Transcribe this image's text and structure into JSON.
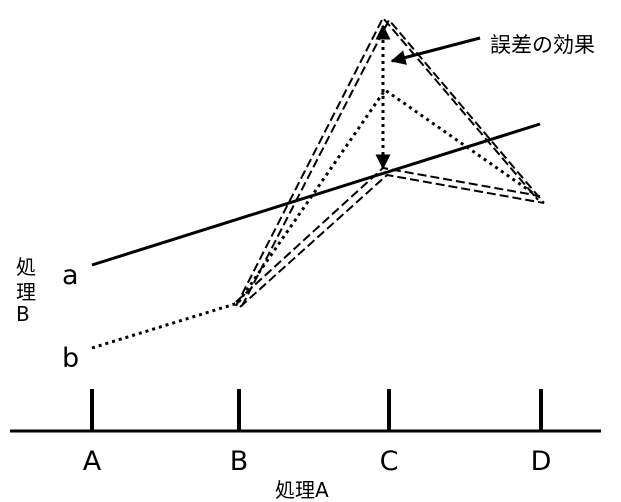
{
  "chart_data": {
    "type": "line",
    "x_axis": {
      "title": "処理A",
      "categories": [
        "A",
        "B",
        "C",
        "D"
      ]
    },
    "legend_title": "処理B",
    "series": [
      {
        "name": "a",
        "style": "solid",
        "values": [
          1.0,
          2.0,
          3.0,
          4.0
        ]
      },
      {
        "name": "b",
        "style": "dotted",
        "values": [
          -1.0,
          0.0,
          3.5,
          1.0
        ]
      }
    ],
    "error_series": [
      {
        "style": "double-dashed",
        "values": [
          null,
          0.0,
          5.7,
          1.0
        ]
      },
      {
        "style": "double-dashed",
        "values": [
          null,
          0.0,
          2.1,
          0.9
        ]
      }
    ],
    "annotation": {
      "text": "誤差の効果",
      "arrow_category": "C",
      "arrow_from": 5.7,
      "arrow_to": 2.1
    },
    "colors": {
      "ink": "#000000",
      "background": "#ffffff"
    }
  }
}
